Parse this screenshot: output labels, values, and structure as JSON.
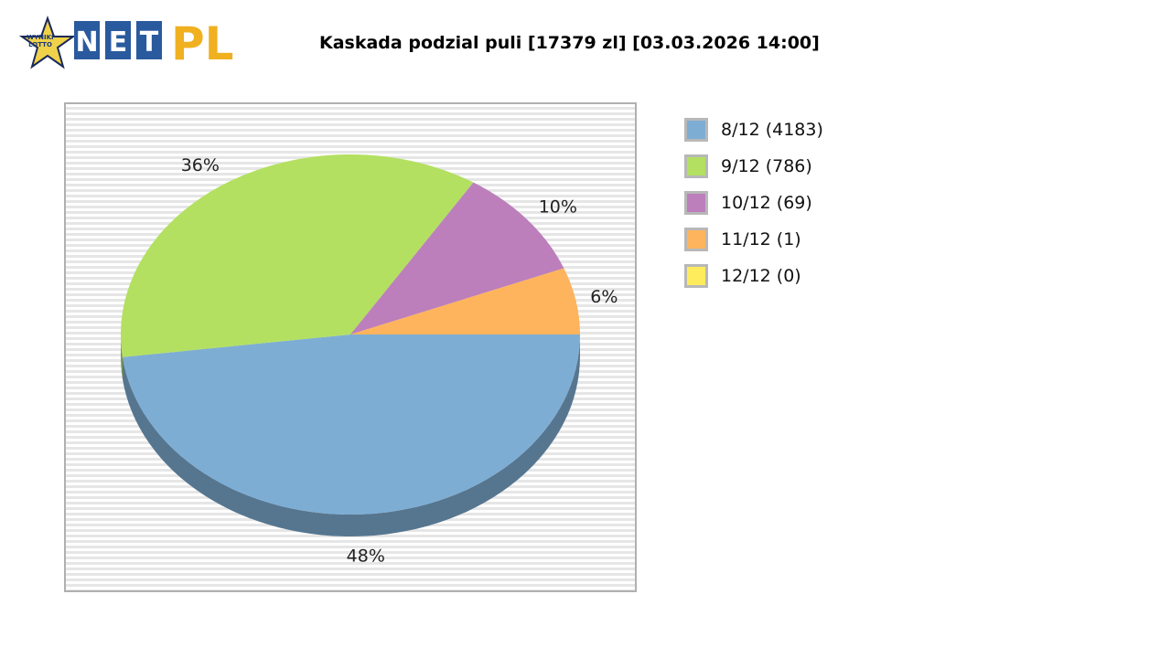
{
  "logo": {
    "badge_text_1": "WYNIKI",
    "badge_text_2": "LOTTO",
    "net_letters": [
      "N",
      "E",
      "T"
    ],
    "pl_text": "PL"
  },
  "chart_data": {
    "type": "pie",
    "title": "Kaskada podzial puli [17379 zl] [03.03.2026 14:00]",
    "categories": [
      "8/12 (4183)",
      "9/12 (786)",
      "10/12 (69)",
      "11/12 (1)",
      "12/12 (0)"
    ],
    "values": [
      48,
      36,
      10,
      6,
      0
    ],
    "value_labels": [
      "48%",
      "36%",
      "10%",
      "6%",
      ""
    ],
    "colors": [
      "#7eadd4",
      "#b3e061",
      "#bc7fbc",
      "#fdb45c",
      "#ffec5c"
    ],
    "legend_position": "right",
    "grid": false
  }
}
